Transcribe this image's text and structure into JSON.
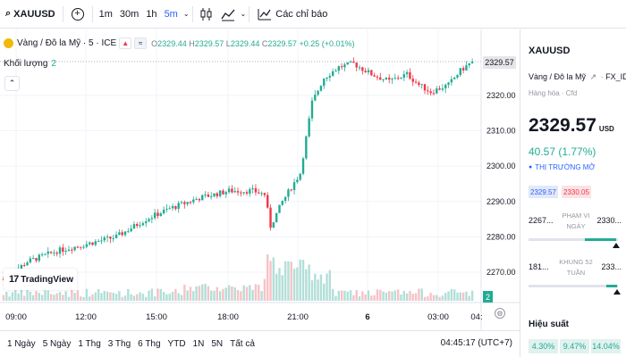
{
  "toolbar": {
    "symbol": "XAUUSD",
    "timeframes": [
      "1m",
      "30m",
      "1h",
      "5m"
    ],
    "active_timeframe": "5m",
    "indicators_label": "Các chỉ báo"
  },
  "legend": {
    "title": "Vàng / Đô la Mỹ · 5 · ICE",
    "open_label": "O",
    "open": "2329.44",
    "high_label": "H",
    "high": "2329.57",
    "low_label": "L",
    "low": "2329.44",
    "close_label": "C",
    "close": "2329.57",
    "change": "+0.25 (+0.01%)",
    "volume_label": "Khối lượng",
    "volume_value": "2"
  },
  "axis": {
    "price_labels": [
      "2320.00",
      "2310.00",
      "2300.00",
      "2290.00",
      "2280.00",
      "2270.00"
    ],
    "current_price": "2329.57",
    "current_volume": "2",
    "time_labels": [
      "09:00",
      "12:00",
      "15:00",
      "18:00",
      "21:00",
      "6",
      "03:00",
      "04:"
    ]
  },
  "branding": {
    "logo_text": "TradingView",
    "logo_mark": "17"
  },
  "ranges": [
    "1 Ngày",
    "5 Ngày",
    "1 Thg",
    "3 Thg",
    "6 Thg",
    "YTD",
    "1N",
    "5N",
    "Tất cả"
  ],
  "clock": "04:45:17 (UTC+7)",
  "panel": {
    "symbol": "XAUUSD",
    "description": "Vàng / Đô la Mỹ",
    "source": "FX_IDC",
    "type": "Hàng hóa · Cfd",
    "price": "2329.57",
    "currency": "USD",
    "change": "40.57 (1.77%)",
    "market_status": "THỊ TRƯỜNG MỞ",
    "bid": "2329.57",
    "ask": "2330.05",
    "day_range": {
      "low": "2267...",
      "label": "PHẠM VI NGÀY",
      "high": "2330...",
      "position": 0.98
    },
    "week52_range": {
      "low": "181...",
      "label": "KHUNG 52 TUẦN",
      "high": "233...",
      "position": 0.99
    },
    "performance_title": "Hiệu suất",
    "performance": [
      "4.30%",
      "9.47%",
      "14.04%"
    ]
  },
  "colors": {
    "up": "#22ab94",
    "down": "#f23645",
    "accent": "#2962ff",
    "gold": "#f0b90b"
  },
  "chart_data": {
    "type": "candlestick",
    "y_axis_labels": [
      2270,
      2280,
      2290,
      2300,
      2310,
      2320
    ],
    "ylim": [
      2266,
      2332
    ],
    "x_tick_labels": [
      "09:00",
      "12:00",
      "15:00",
      "18:00",
      "21:00",
      "6",
      "03:00"
    ],
    "close_path_anchors": [
      [
        0,
        2268
      ],
      [
        8,
        2273
      ],
      [
        18,
        2276
      ],
      [
        28,
        2278
      ],
      [
        38,
        2280
      ],
      [
        48,
        2285
      ],
      [
        56,
        2288
      ],
      [
        66,
        2291
      ],
      [
        76,
        2293
      ],
      [
        84,
        2293
      ],
      [
        88,
        2292
      ],
      [
        90,
        2283
      ],
      [
        94,
        2290
      ],
      [
        100,
        2298
      ],
      [
        104,
        2318
      ],
      [
        108,
        2325
      ],
      [
        113,
        2328
      ],
      [
        118,
        2329
      ],
      [
        124,
        2326
      ],
      [
        130,
        2324
      ],
      [
        136,
        2326
      ],
      [
        140,
        2323
      ],
      [
        144,
        2321
      ],
      [
        150,
        2323
      ],
      [
        154,
        2327
      ],
      [
        158,
        2329.57
      ]
    ],
    "last_close": 2329.57,
    "volume_series": "Khối lượng"
  }
}
